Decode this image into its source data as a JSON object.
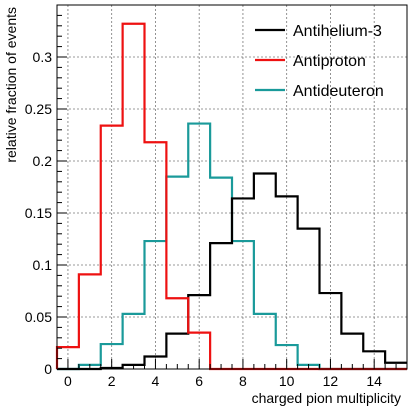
{
  "chart_data": {
    "type": "line",
    "step": true,
    "title": "",
    "xlabel": "charged pion multiplicity",
    "ylabel": "relative fraction of events",
    "xlim": [
      -0.5,
      15.5
    ],
    "ylim": [
      0,
      0.35
    ],
    "grid": true,
    "legend_position": "top-right",
    "x_ticks": [
      0,
      2,
      4,
      6,
      8,
      10,
      12,
      14
    ],
    "y_ticks": [
      0,
      0.05,
      0.1,
      0.15,
      0.2,
      0.25,
      0.3
    ],
    "x_tick_labels": [
      "0",
      "2",
      "4",
      "6",
      "8",
      "10",
      "12",
      "14"
    ],
    "y_tick_labels": [
      "0",
      "0.05",
      "0.1",
      "0.15",
      "0.2",
      "0.25",
      "0.3"
    ],
    "bin_edges": [
      -0.5,
      0.5,
      1.5,
      2.5,
      3.5,
      4.5,
      5.5,
      6.5,
      7.5,
      8.5,
      9.5,
      10.5,
      11.5,
      12.5,
      13.5,
      14.5,
      15.5
    ],
    "series": [
      {
        "name": "Antihelium-3",
        "color": "#000000",
        "values": [
          0.0,
          0.0,
          0.001,
          0.004,
          0.012,
          0.034,
          0.071,
          0.121,
          0.164,
          0.188,
          0.166,
          0.135,
          0.073,
          0.034,
          0.017,
          0.006
        ]
      },
      {
        "name": "Antiproton",
        "color": "#ee1111",
        "values": [
          0.021,
          0.091,
          0.234,
          0.332,
          0.218,
          0.068,
          0.035,
          0.0,
          0.0,
          0.0,
          0.0,
          0.0,
          0.0,
          0.0,
          0.0,
          0.0
        ]
      },
      {
        "name": "Antideuteron",
        "color": "#1a9a9a",
        "values": [
          0.0,
          0.004,
          0.024,
          0.053,
          0.123,
          0.185,
          0.236,
          0.184,
          0.123,
          0.053,
          0.023,
          0.004,
          0.0,
          0.0,
          0.0,
          0.0
        ]
      }
    ]
  }
}
